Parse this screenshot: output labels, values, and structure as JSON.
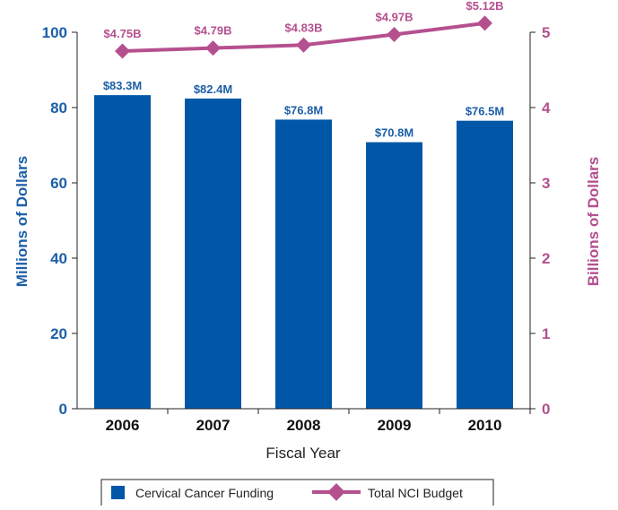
{
  "chart_data": {
    "type": "bar",
    "categories": [
      "2006",
      "2007",
      "2008",
      "2009",
      "2010"
    ],
    "xlabel": "Fiscal Year",
    "ylabel": "Millions of Dollars",
    "y2label": "Billions of Dollars",
    "ylim": [
      0,
      100
    ],
    "y2lim": [
      0,
      5
    ],
    "yticks": [
      "0",
      "20",
      "40",
      "60",
      "80",
      "100"
    ],
    "y2ticks": [
      "0",
      "1",
      "2",
      "3",
      "4",
      "5"
    ],
    "grid": false,
    "legend_position": "bottom",
    "series": [
      {
        "name": "Cervical Cancer Funding",
        "type": "bar",
        "axis": "left",
        "values": [
          83.3,
          82.4,
          76.8,
          70.8,
          76.5
        ],
        "labels": [
          "$83.3M",
          "$82.4M",
          "$76.8M",
          "$70.8M",
          "$76.5M"
        ],
        "color": "#0057a8"
      },
      {
        "name": "Total NCI Budget",
        "type": "line",
        "axis": "right",
        "values": [
          4.75,
          4.79,
          4.83,
          4.97,
          5.12
        ],
        "labels": [
          "$4.75B",
          "$4.79B",
          "$4.83B",
          "$4.97B",
          "$5.12B"
        ],
        "color": "#b5508f"
      }
    ],
    "colors": {
      "axis_left": "#1c5fa8",
      "axis_right": "#b5508f",
      "text": "#111111"
    }
  }
}
